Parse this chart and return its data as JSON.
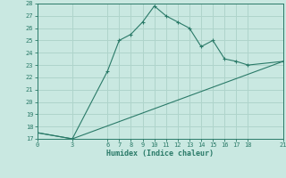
{
  "xlabel": "Humidex (Indice chaleur)",
  "bg_color": "#c9e8e1",
  "grid_color": "#afd4cb",
  "line_color": "#2a7a68",
  "curve_x": [
    0,
    3,
    6,
    7,
    8,
    9,
    10,
    11,
    12,
    13,
    14,
    15,
    16,
    17,
    18,
    21
  ],
  "curve_y": [
    17.5,
    17.0,
    22.5,
    25.0,
    25.5,
    26.5,
    27.8,
    27.0,
    26.5,
    26.0,
    24.5,
    25.0,
    23.5,
    23.3,
    23.0,
    23.3
  ],
  "line_x": [
    0,
    3,
    21
  ],
  "line_y": [
    17.5,
    17.0,
    23.3
  ],
  "xticks": [
    0,
    3,
    6,
    7,
    8,
    9,
    10,
    11,
    12,
    13,
    14,
    15,
    16,
    17,
    18,
    21
  ],
  "yticks": [
    17,
    18,
    19,
    20,
    21,
    22,
    23,
    24,
    25,
    26,
    27,
    28
  ],
  "xlim": [
    0,
    21
  ],
  "ylim": [
    17,
    28
  ]
}
